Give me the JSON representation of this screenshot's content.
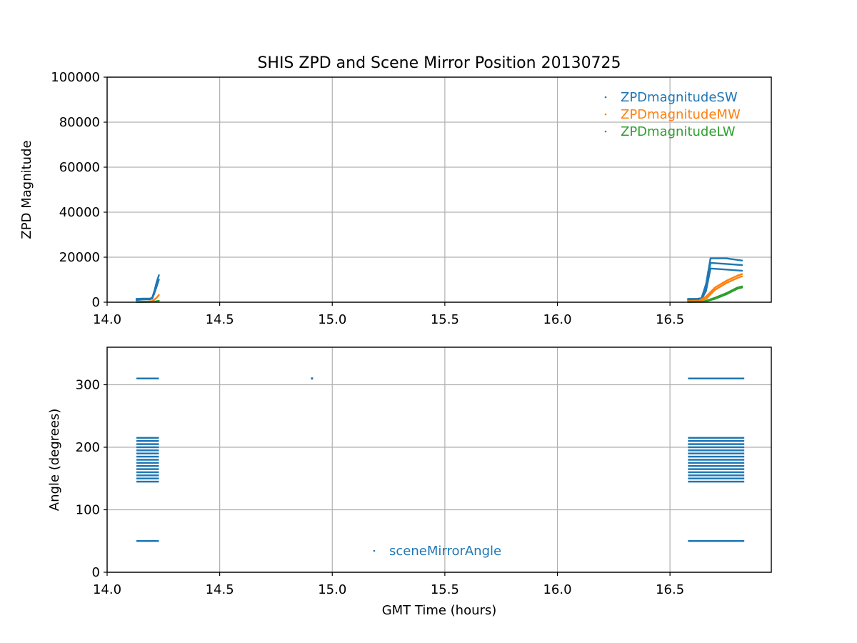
{
  "title": "SHIS ZPD and Scene Mirror Position 20130725",
  "colors": {
    "sw": "#1f77b4",
    "mw": "#ff7f0e",
    "lw": "#2ca02c",
    "grid": "#b0b0b0"
  },
  "chart_data": [
    {
      "type": "scatter",
      "title": "SHIS ZPD and Scene Mirror Position 20130725",
      "xlabel": "",
      "ylabel": "ZPD Magnitude",
      "xlim": [
        14.0,
        16.95
      ],
      "ylim": [
        0,
        100000
      ],
      "x_ticks": [
        14.0,
        14.5,
        15.0,
        15.5,
        16.0,
        16.5
      ],
      "x_tick_labels": [
        "14.0",
        "14.5",
        "15.0",
        "15.5",
        "16.0",
        "16.5"
      ],
      "y_ticks": [
        0,
        20000,
        40000,
        60000,
        80000,
        100000
      ],
      "y_tick_labels": [
        "0",
        "20000",
        "40000",
        "60000",
        "80000",
        "100000"
      ],
      "grid": true,
      "legend_position": "top-right",
      "series": [
        {
          "name": "ZPDmagnitudeSW",
          "color": "#1f77b4",
          "segments": [
            {
              "x": [
                14.13,
                14.16,
                14.19,
                14.2,
                14.21,
                14.22,
                14.23
              ],
              "y": [
                1500,
                1600,
                1600,
                2000,
                5000,
                9000,
                12000
              ]
            },
            {
              "x": [
                14.13,
                14.16,
                14.19,
                14.2,
                14.21,
                14.22,
                14.23
              ],
              "y": [
                1000,
                1200,
                1300,
                1600,
                4000,
                7000,
                10000
              ]
            },
            {
              "x": [
                16.58,
                16.62,
                16.64,
                16.66,
                16.68,
                16.75,
                16.82
              ],
              "y": [
                1500,
                1500,
                1800,
                8000,
                19500,
                19500,
                18500
              ]
            },
            {
              "x": [
                16.58,
                16.62,
                16.64,
                16.66,
                16.68,
                16.75,
                16.82
              ],
              "y": [
                1200,
                1300,
                1500,
                6000,
                17500,
                17000,
                16500
              ]
            },
            {
              "x": [
                16.58,
                16.62,
                16.64,
                16.66,
                16.68,
                16.75,
                16.82
              ],
              "y": [
                1000,
                1100,
                1300,
                5000,
                15000,
                14500,
                14000
              ]
            }
          ]
        },
        {
          "name": "ZPDmagnitudeMW",
          "color": "#ff7f0e",
          "segments": [
            {
              "x": [
                14.13,
                14.18,
                14.2,
                14.21,
                14.22,
                14.23
              ],
              "y": [
                200,
                300,
                500,
                1200,
                2000,
                3200
              ]
            },
            {
              "x": [
                16.58,
                16.63,
                16.66,
                16.7,
                16.75,
                16.8,
                16.82
              ],
              "y": [
                300,
                400,
                1500,
                5500,
                8500,
                10800,
                11500
              ]
            },
            {
              "x": [
                16.58,
                16.63,
                16.66,
                16.7,
                16.75,
                16.8,
                16.82
              ],
              "y": [
                500,
                700,
                2500,
                6500,
                9500,
                11800,
                12500
              ]
            }
          ]
        },
        {
          "name": "ZPDmagnitudeLW",
          "color": "#2ca02c",
          "segments": [
            {
              "x": [
                14.13,
                14.18,
                14.21,
                14.23
              ],
              "y": [
                100,
                150,
                300,
                600
              ]
            },
            {
              "x": [
                16.58,
                16.65,
                16.7,
                16.75,
                16.8,
                16.82
              ],
              "y": [
                100,
                200,
                1500,
                3500,
                6000,
                6500
              ]
            },
            {
              "x": [
                16.58,
                16.65,
                16.7,
                16.75,
                16.8,
                16.82
              ],
              "y": [
                200,
                300,
                2000,
                4000,
                6500,
                7000
              ]
            }
          ]
        }
      ]
    },
    {
      "type": "scatter",
      "title": "",
      "xlabel": "GMT Time (hours)",
      "ylabel": "Angle (degrees)",
      "xlim": [
        14.0,
        16.95
      ],
      "ylim": [
        0,
        360
      ],
      "x_ticks": [
        14.0,
        14.5,
        15.0,
        15.5,
        16.0,
        16.5
      ],
      "x_tick_labels": [
        "14.0",
        "14.5",
        "15.0",
        "15.5",
        "16.0",
        "16.5"
      ],
      "y_ticks": [
        0,
        100,
        200,
        300
      ],
      "y_tick_labels": [
        "0",
        "100",
        "200",
        "300"
      ],
      "grid": true,
      "legend_position": "lower-center",
      "series": [
        {
          "name": "sceneMirrorAngle",
          "color": "#1f77b4",
          "angles": [
            50,
            145,
            150,
            155,
            160,
            165,
            170,
            175,
            180,
            185,
            190,
            195,
            200,
            205,
            210,
            215,
            310
          ],
          "time_spans": [
            [
              14.13,
              14.23
            ],
            [
              16.58,
              16.83
            ]
          ],
          "isolated_points": [
            {
              "x": 14.91,
              "y": 310
            }
          ]
        }
      ]
    }
  ]
}
